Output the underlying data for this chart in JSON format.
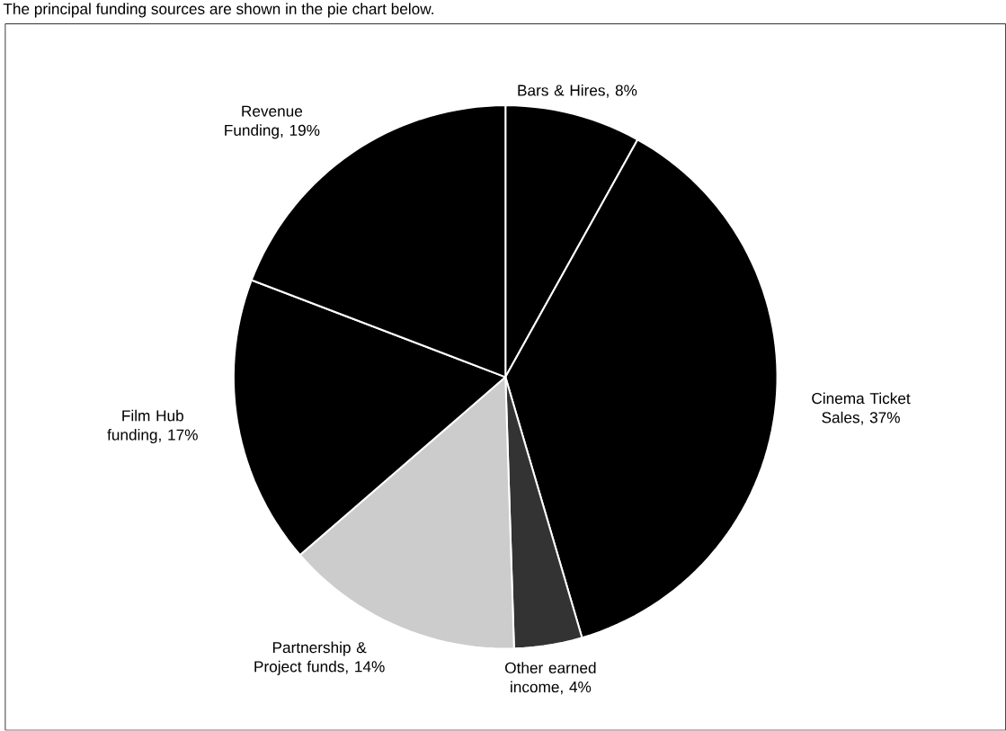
{
  "chart_data": {
    "type": "pie",
    "title": "The principal funding sources are shown in the pie chart below.",
    "categories": [
      "Bars & Hires",
      "Cinema Ticket Sales",
      "Other earned income",
      "Partnership & Project funds",
      "Film Hub funding",
      "Revenue Funding"
    ],
    "values": [
      8,
      37,
      4,
      14,
      17,
      19
    ],
    "value_labels": [
      ", 8%",
      ", 37%",
      ", 4%",
      ", 14%",
      ", 17%",
      ", 19%"
    ],
    "colors": [
      "#000000",
      "#000000",
      "#333333",
      "#cccccc",
      "#000000",
      "#000000"
    ]
  }
}
